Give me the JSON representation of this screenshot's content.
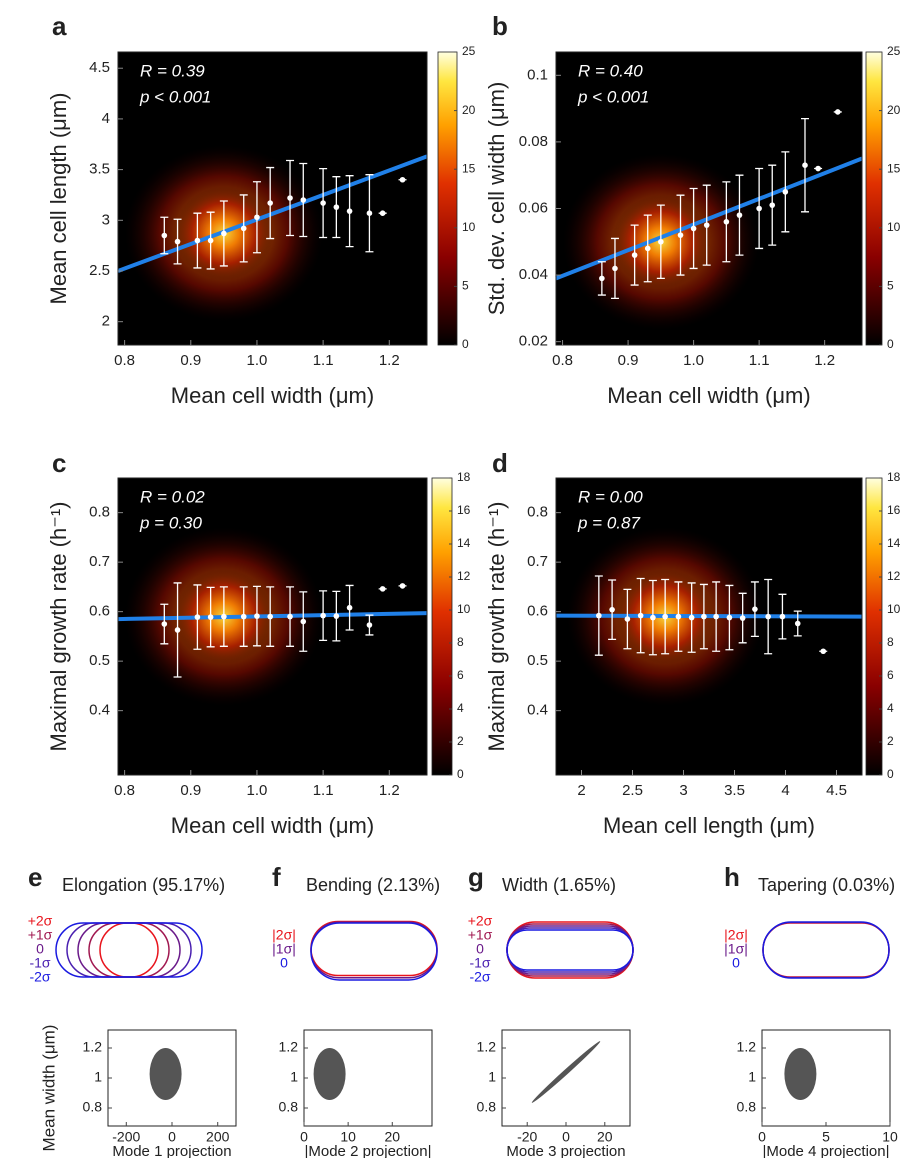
{
  "chart_data": [
    {
      "type": "binned",
      "panel": "a",
      "annotations": [
        "R = 0.39",
        "p < 0.001"
      ],
      "x_label": "Mean cell width (μm)",
      "y_label": "Mean cell length (μm)",
      "xlim": [
        0.79,
        1.257
      ],
      "xticks": [
        0.8,
        0.9,
        {
          "value": 1,
          "label": "1.0"
        },
        1.1,
        1.2
      ],
      "ylim": [
        1.77,
        4.66
      ],
      "yticks": [
        2,
        2.5,
        3,
        3.5,
        4,
        4.5
      ],
      "clim": [
        0,
        25
      ],
      "cticks": [
        0,
        5,
        10,
        15,
        20,
        25
      ],
      "color": "#ffffff",
      "x": [
        0.86,
        0.88,
        0.91,
        0.93,
        0.95,
        0.98,
        1.0,
        1.02,
        1.05,
        1.07,
        1.1,
        1.12,
        1.14,
        1.17,
        1.19,
        1.22
      ],
      "values": [
        2.85,
        2.79,
        2.8,
        2.8,
        2.87,
        2.92,
        3.03,
        3.17,
        3.22,
        3.2,
        3.17,
        3.13,
        3.09,
        3.07,
        3.07,
        3.4
      ],
      "errors": [
        0.18,
        0.22,
        0.27,
        0.28,
        0.32,
        0.33,
        0.35,
        0.35,
        0.37,
        0.36,
        0.34,
        0.3,
        0.35,
        0.38,
        0,
        0
      ],
      "fit": {
        "color": "#2080e8",
        "x": [
          0.79,
          1.257
        ],
        "values": [
          2.5,
          3.63
        ]
      }
    },
    {
      "type": "binned",
      "panel": "b",
      "annotations": [
        "R = 0.40",
        "p < 0.001"
      ],
      "x_label": "Mean cell width (μm)",
      "y_label": "Std. dev. cell width (μm)",
      "xlim": [
        0.79,
        1.257
      ],
      "xticks": [
        0.8,
        0.9,
        {
          "value": 1,
          "label": "1.0"
        },
        1.1,
        1.2
      ],
      "ylim": [
        0.019,
        0.107
      ],
      "yticks": [
        0.02,
        0.04,
        0.06,
        0.08,
        0.1
      ],
      "clim": [
        0,
        25
      ],
      "cticks": [
        0,
        5,
        10,
        15,
        20,
        25
      ],
      "color": "#ffffff",
      "x": [
        0.86,
        0.88,
        0.91,
        0.93,
        0.95,
        0.98,
        1.0,
        1.02,
        1.05,
        1.07,
        1.1,
        1.12,
        1.14,
        1.17,
        1.19,
        1.22
      ],
      "values": [
        0.039,
        0.042,
        0.046,
        0.048,
        0.05,
        0.052,
        0.054,
        0.055,
        0.056,
        0.058,
        0.06,
        0.061,
        0.065,
        0.073,
        0.072,
        0.089
      ],
      "errors": [
        0.005,
        0.009,
        0.009,
        0.01,
        0.011,
        0.012,
        0.012,
        0.012,
        0.012,
        0.012,
        0.012,
        0.012,
        0.012,
        0.014,
        0,
        0
      ],
      "fit": {
        "color": "#2080e8",
        "x": [
          0.79,
          1.257
        ],
        "values": [
          0.039,
          0.075
        ]
      }
    },
    {
      "type": "binned",
      "panel": "c",
      "annotations": [
        "R = 0.02",
        "p = 0.30"
      ],
      "x_label": "Mean cell width (μm)",
      "y_label": "Maximal growth rate (h⁻¹)",
      "xlim": [
        0.79,
        1.257
      ],
      "xticks": [
        0.8,
        0.9,
        {
          "value": 1,
          "label": "1.0"
        },
        1.1,
        1.2
      ],
      "ylim": [
        0.27,
        0.87
      ],
      "yticks": [
        0.4,
        0.5,
        0.6,
        0.7,
        0.8
      ],
      "clim": [
        0,
        18
      ],
      "cticks": [
        0,
        2,
        4,
        6,
        8,
        10,
        12,
        14,
        16,
        18
      ],
      "color": "#ffffff",
      "x": [
        0.86,
        0.88,
        0.91,
        0.93,
        0.95,
        0.98,
        1.0,
        1.02,
        1.05,
        1.07,
        1.1,
        1.12,
        1.14,
        1.17,
        1.19,
        1.22
      ],
      "values": [
        0.575,
        0.563,
        0.589,
        0.589,
        0.59,
        0.59,
        0.591,
        0.59,
        0.59,
        0.58,
        0.592,
        0.591,
        0.608,
        0.573,
        0.646,
        0.652
      ],
      "errors": [
        0.04,
        0.095,
        0.065,
        0.06,
        0.06,
        0.06,
        0.06,
        0.06,
        0.06,
        0.06,
        0.05,
        0.05,
        0.045,
        0.02,
        0,
        0
      ],
      "fit": {
        "color": "#2080e8",
        "x": [
          0.79,
          1.257
        ],
        "values": [
          0.585,
          0.597
        ]
      }
    },
    {
      "type": "binned",
      "panel": "d",
      "annotations": [
        "R = 0.00",
        "p = 0.87"
      ],
      "x_label": "Mean cell length (μm)",
      "y_label": "Maximal growth rate (h⁻¹)",
      "xlim": [
        1.75,
        4.75
      ],
      "xticks": [
        2,
        2.5,
        3,
        3.5,
        4,
        4.5
      ],
      "ylim": [
        0.27,
        0.87
      ],
      "yticks": [
        0.4,
        0.5,
        0.6,
        0.7,
        0.8
      ],
      "clim": [
        0,
        18
      ],
      "cticks": [
        0,
        2,
        4,
        6,
        8,
        10,
        12,
        14,
        16,
        18
      ],
      "color": "#ffffff",
      "x": [
        2.17,
        2.3,
        2.45,
        2.58,
        2.7,
        2.82,
        2.95,
        3.08,
        3.2,
        3.32,
        3.45,
        3.58,
        3.7,
        3.83,
        3.97,
        4.12,
        4.37
      ],
      "values": [
        0.592,
        0.604,
        0.585,
        0.592,
        0.588,
        0.59,
        0.59,
        0.588,
        0.59,
        0.59,
        0.588,
        0.587,
        0.605,
        0.59,
        0.59,
        0.576,
        0.52
      ],
      "errors": [
        0.08,
        0.06,
        0.06,
        0.075,
        0.075,
        0.075,
        0.07,
        0.07,
        0.065,
        0.07,
        0.065,
        0.05,
        0.055,
        0.075,
        0.045,
        0.025,
        0
      ],
      "fit": {
        "color": "#2080e8",
        "x": [
          1.75,
          4.75
        ],
        "values": [
          0.592,
          0.59
        ]
      }
    },
    {
      "type": "scatter",
      "panel": "e",
      "title": "Elongation (95.17%)",
      "shape": "length",
      "levels": [
        "+2σ",
        "+1σ",
        "0",
        "-1σ",
        "-2σ"
      ],
      "level_colors": [
        "#e8141c",
        "#a01850",
        "#6a1a8a",
        "#4a20b0",
        "#1a1ae0"
      ],
      "y_label": "Mean width (μm)",
      "x_label": "Mode 1 projection",
      "xlim": [
        -280,
        280
      ],
      "xticks": [
        -200,
        0,
        200
      ],
      "ylim": [
        0.68,
        1.32
      ],
      "yticks": [
        0.8,
        1,
        1.2
      ],
      "color": "#555555"
    },
    {
      "type": "scatter",
      "panel": "f",
      "title": "Bending (2.13%)",
      "shape": "bend",
      "levels": [
        "|2σ|",
        "|1σ|",
        "0"
      ],
      "level_colors": [
        "#e8141c",
        "#6a1a8a",
        "#1a1ae0"
      ],
      "x_label": "|Mode 2 projection|",
      "xlim": [
        0,
        29
      ],
      "xticks": [
        0,
        10,
        20
      ],
      "ylim": [
        0.68,
        1.32
      ],
      "yticks": [
        0.8,
        1,
        1.2
      ],
      "color": "#555555"
    },
    {
      "type": "scatter",
      "panel": "g",
      "title": "Width (1.65%)",
      "shape": "width",
      "levels": [
        "+2σ",
        "+1σ",
        "0",
        "-1σ",
        "-2σ"
      ],
      "level_colors": [
        "#e8141c",
        "#a01850",
        "#6a1a8a",
        "#4a20b0",
        "#1a1ae0"
      ],
      "x_label": "Mode 3 projection",
      "xlim": [
        -33,
        33
      ],
      "xticks": [
        -20,
        0,
        20
      ],
      "ylim": [
        0.68,
        1.32
      ],
      "yticks": [
        0.8,
        1,
        1.2
      ],
      "color": "#555555"
    },
    {
      "type": "scatter",
      "panel": "h",
      "title": "Tapering (0.03%)",
      "shape": "taper",
      "levels": [
        "|2σ|",
        "|1σ|",
        "0"
      ],
      "level_colors": [
        "#e8141c",
        "#6a1a8a",
        "#1a1ae0"
      ],
      "x_label": "|Mode 4 projection|",
      "xlim": [
        0,
        10
      ],
      "xticks": [
        0,
        5,
        10
      ],
      "ylim": [
        0.68,
        1.32
      ],
      "yticks": [
        0.8,
        1,
        1.2
      ],
      "color": "#555555"
    }
  ]
}
